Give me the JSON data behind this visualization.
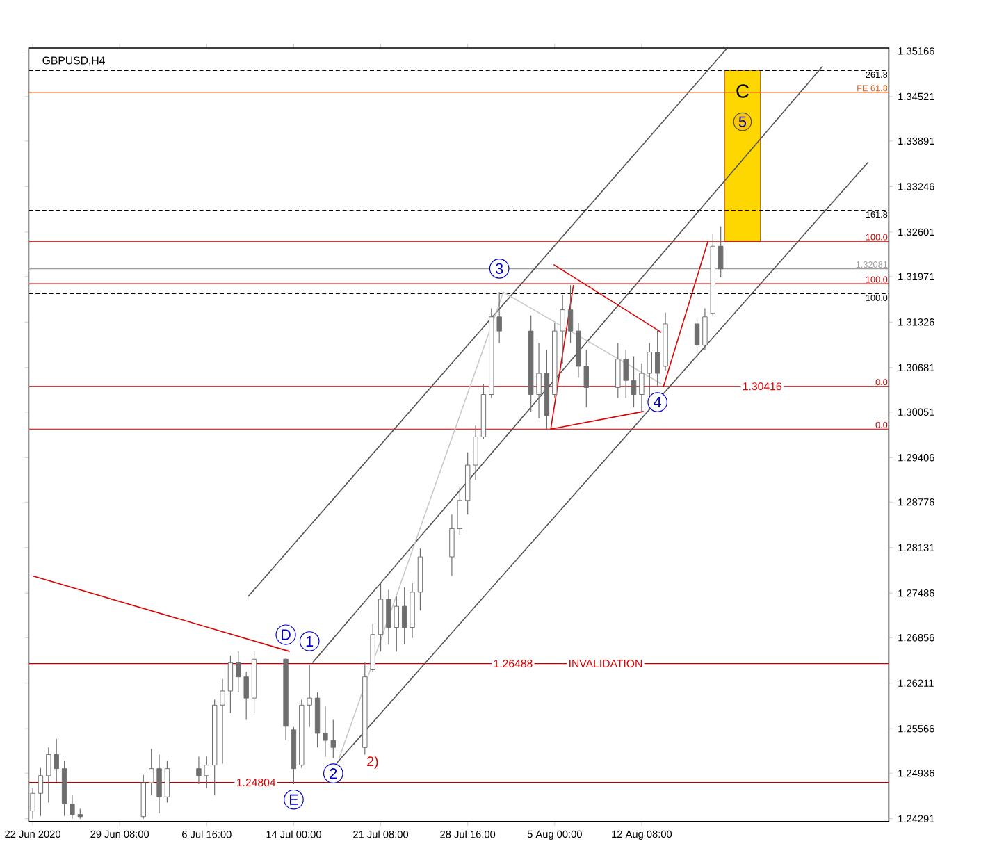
{
  "chart_data": {
    "type": "candlestick",
    "title": "GBPUSD,H4",
    "color": "#6e6e6e",
    "x": [
      "2020-06-22T00:00",
      "2020-06-22T16:00",
      "2020-06-23T08:00",
      "2020-06-24T00:00",
      "2020-06-24T16:00",
      "2020-06-25T08:00",
      "2020-06-26T00:00",
      "2020-07-01T08:00",
      "2020-07-02T00:00",
      "2020-07-02T16:00",
      "2020-07-03T08:00",
      "2020-07-06T00:00",
      "2020-07-06T16:00",
      "2020-07-07T08:00",
      "2020-07-08T00:00",
      "2020-07-08T16:00",
      "2020-07-09T08:00",
      "2020-07-10T00:00",
      "2020-07-10T16:00",
      "2020-07-13T08:00",
      "2020-07-14T00:00",
      "2020-07-14T16:00",
      "2020-07-15T08:00",
      "2020-07-16T00:00",
      "2020-07-16T16:00",
      "2020-07-17T08:00",
      "2020-07-20T00:00",
      "2020-07-20T16:00",
      "2020-07-21T08:00",
      "2020-07-22T00:00",
      "2020-07-22T16:00",
      "2020-07-23T08:00",
      "2020-07-24T00:00",
      "2020-07-24T16:00",
      "2020-07-27T08:00",
      "2020-07-28T00:00",
      "2020-07-28T16:00",
      "2020-07-29T08:00",
      "2020-07-30T00:00",
      "2020-07-30T16:00",
      "2020-07-31T08:00",
      "2020-08-03T00:00",
      "2020-08-03T16:00",
      "2020-08-04T08:00",
      "2020-08-05T00:00",
      "2020-08-05T16:00",
      "2020-08-06T08:00",
      "2020-08-07T00:00",
      "2020-08-07T16:00",
      "2020-08-10T08:00",
      "2020-08-11T00:00",
      "2020-08-11T16:00",
      "2020-08-12T08:00",
      "2020-08-13T00:00",
      "2020-08-13T16:00",
      "2020-08-14T08:00",
      "2020-08-17T00:00",
      "2020-08-17T16:00",
      "2020-08-18T08:00",
      "2020-08-19T00:00"
    ],
    "ohlc": [
      [
        1.244,
        1.2472,
        1.2429,
        1.2465
      ],
      [
        1.2465,
        1.2501,
        1.2433,
        1.249
      ],
      [
        1.249,
        1.253,
        1.2452,
        1.252
      ],
      [
        1.252,
        1.2542,
        1.2481,
        1.25
      ],
      [
        1.25,
        1.2511,
        1.2433,
        1.245
      ],
      [
        1.245,
        1.2462,
        1.2429,
        1.2435
      ],
      [
        1.2435,
        1.2443,
        1.2429,
        1.2432
      ],
      [
        1.2432,
        1.2491,
        1.2429,
        1.248
      ],
      [
        1.248,
        1.2528,
        1.2462,
        1.25
      ],
      [
        1.25,
        1.252,
        1.2437,
        1.246
      ],
      [
        1.246,
        1.2511,
        1.2452,
        1.25
      ],
      [
        1.25,
        1.2517,
        1.2478,
        1.249
      ],
      [
        1.249,
        1.2517,
        1.2472,
        1.2505
      ],
      [
        1.2505,
        1.2598,
        1.2462,
        1.259
      ],
      [
        1.259,
        1.2627,
        1.2507,
        1.261
      ],
      [
        1.261,
        1.266,
        1.2579,
        1.265
      ],
      [
        1.265,
        1.2666,
        1.2608,
        1.263
      ],
      [
        1.263,
        1.2637,
        1.2569,
        1.26
      ],
      [
        1.26,
        1.2666,
        1.2579,
        1.2655
      ],
      [
        1.2655,
        1.2656,
        1.254,
        1.256
      ],
      [
        1.2555,
        1.2559,
        1.2478,
        1.25
      ],
      [
        1.2505,
        1.2598,
        1.2501,
        1.259
      ],
      [
        1.259,
        1.2647,
        1.2559,
        1.26
      ],
      [
        1.26,
        1.2608,
        1.253,
        1.255
      ],
      [
        1.255,
        1.2588,
        1.2517,
        1.254
      ],
      [
        1.254,
        1.2569,
        1.2515,
        1.253
      ],
      [
        1.253,
        1.265,
        1.252,
        1.263
      ],
      [
        1.264,
        1.2705,
        1.2637,
        1.269
      ],
      [
        1.269,
        1.2763,
        1.2666,
        1.274
      ],
      [
        1.274,
        1.2753,
        1.2676,
        1.27
      ],
      [
        1.27,
        1.2744,
        1.2666,
        1.273
      ],
      [
        1.273,
        1.2757,
        1.2676,
        1.27
      ],
      [
        1.27,
        1.2763,
        1.2685,
        1.275
      ],
      [
        1.275,
        1.2812,
        1.2724,
        1.28
      ],
      [
        1.28,
        1.286,
        1.2773,
        1.284
      ],
      [
        1.284,
        1.2899,
        1.2831,
        1.288
      ],
      [
        1.288,
        1.2948,
        1.286,
        1.293
      ],
      [
        1.293,
        1.2986,
        1.2909,
        1.297
      ],
      [
        1.297,
        1.3045,
        1.2967,
        1.303
      ],
      [
        1.303,
        1.3152,
        1.3025,
        1.314
      ],
      [
        1.314,
        1.3175,
        1.3103,
        1.312
      ],
      [
        1.312,
        1.3142,
        1.3006,
        1.303
      ],
      [
        1.303,
        1.3103,
        1.2996,
        1.306
      ],
      [
        1.306,
        1.3093,
        1.2981,
        1.3
      ],
      [
        1.303,
        1.3132,
        1.3025,
        1.312
      ],
      [
        1.312,
        1.3171,
        1.3074,
        1.315
      ],
      [
        1.315,
        1.3185,
        1.3103,
        1.312
      ],
      [
        1.312,
        1.3132,
        1.3054,
        1.307
      ],
      [
        1.307,
        1.3093,
        1.3012,
        1.304
      ],
      [
        1.304,
        1.3103,
        1.3025,
        1.308
      ],
      [
        1.308,
        1.3093,
        1.3025,
        1.305
      ],
      [
        1.305,
        1.3084,
        1.3012,
        1.303
      ],
      [
        1.303,
        1.3074,
        1.3006,
        1.306
      ],
      [
        1.306,
        1.3103,
        1.3025,
        1.309
      ],
      [
        1.309,
        1.3122,
        1.3041,
        1.306
      ],
      [
        1.307,
        1.3146,
        1.3064,
        1.313
      ],
      [
        1.313,
        1.3138,
        1.308,
        1.31
      ],
      [
        1.31,
        1.3152,
        1.3093,
        1.314
      ],
      [
        1.3145,
        1.3258,
        1.3142,
        1.324
      ],
      [
        1.324,
        1.3268,
        1.3196,
        1.3208
      ]
    ],
    "xlim": [
      "2020-06-21T16:00",
      "2020-09-02T04:00"
    ],
    "xticks": [
      {
        "value": "2020-06-22T00:00",
        "label": "22 Jun 2020"
      },
      {
        "value": "2020-06-29T08:00",
        "label": "29 Jun 08:00"
      },
      {
        "value": "2020-07-06T16:00",
        "label": "6 Jul 16:00"
      },
      {
        "value": "2020-07-14T00:00",
        "label": "14 Jul 00:00"
      },
      {
        "value": "2020-07-21T08:00",
        "label": "21 Jul 08:00"
      },
      {
        "value": "2020-07-28T16:00",
        "label": "28 Jul 16:00"
      },
      {
        "value": "2020-08-05T00:00",
        "label": "5 Aug 00:00"
      },
      {
        "value": "2020-08-12T08:00",
        "label": "12 Aug 08:00"
      }
    ],
    "ylim": [
      1.2425,
      1.3521
    ],
    "yticks": [
      1.24291,
      1.24936,
      1.25566,
      1.26211,
      1.26856,
      1.27486,
      1.28131,
      1.28776,
      1.29406,
      1.30051,
      1.30681,
      1.31326,
      1.31971,
      1.32601,
      1.33246,
      1.33891,
      1.34521,
      1.35166
    ],
    "series": [
      {
        "type": "line",
        "color": "#dd0000",
        "x": [
          "2020-06-22T00:00",
          "2020-07-13T16:00"
        ],
        "values": [
          1.2773,
          1.2666
        ]
      },
      {
        "type": "line",
        "color": "#505050",
        "x": [
          "2020-07-10T04:00",
          "2020-08-19T12:00"
        ],
        "values": [
          1.2744,
          1.352
        ]
      },
      {
        "type": "line",
        "color": "#505050",
        "x": [
          "2020-07-15T14:00",
          "2020-08-27T14:00"
        ],
        "values": [
          1.265,
          1.3495
        ]
      },
      {
        "type": "line",
        "color": "#505050",
        "x": [
          "2020-07-17T14:00",
          "2020-08-31T10:00"
        ],
        "values": [
          1.2507,
          1.3359
        ]
      },
      {
        "type": "line",
        "color": "#c8c8c8",
        "x": [
          "2020-07-17T20:00",
          "2020-07-31T16:00",
          "2020-08-14T00:00"
        ],
        "values": [
          1.2515,
          1.3175,
          1.3045
        ]
      },
      {
        "type": "line",
        "color": "#dd0000",
        "x": [
          "2020-08-04T22:00",
          "2020-08-14T00:00"
        ],
        "values": [
          1.3214,
          1.3118
        ]
      },
      {
        "type": "line",
        "color": "#dd0000",
        "x": [
          "2020-08-04T16:00",
          "2020-08-12T12:00"
        ],
        "values": [
          1.2981,
          1.3006
        ]
      },
      {
        "type": "line",
        "color": "#dd0000",
        "x": [
          "2020-08-04T16:00",
          "2020-08-06T14:00"
        ],
        "values": [
          1.2981,
          1.3185
        ]
      },
      {
        "type": "line",
        "color": "#dd0000",
        "x": [
          "2020-08-14T04:00",
          "2020-08-17T22:00"
        ],
        "values": [
          1.3041,
          1.3247
        ]
      }
    ],
    "ref_lines": [
      {
        "axis": "y",
        "value": 1.3489,
        "color": "#000000",
        "line_style": "dashed"
      },
      {
        "axis": "y",
        "value": 1.3458,
        "color": "#e0601a",
        "line_style": "solid"
      },
      {
        "axis": "y",
        "value": 1.3291,
        "color": "#000000",
        "line_style": "dashed"
      },
      {
        "axis": "y",
        "value": 1.3247,
        "color": "#c00000",
        "line_style": "solid"
      },
      {
        "axis": "y",
        "value": 1.32081,
        "label": "1.32081",
        "color": "#a0a0a0",
        "line_style": "solid"
      },
      {
        "axis": "y",
        "value": 1.3187,
        "color": "#c00000",
        "line_style": "solid"
      },
      {
        "axis": "y",
        "value": 1.3173,
        "color": "#000000",
        "line_style": "dashed"
      },
      {
        "axis": "y",
        "value": 1.30416,
        "color": "#c00000",
        "line_style": "solid"
      },
      {
        "axis": "y",
        "value": 1.2981,
        "color": "#c00000",
        "line_style": "solid"
      },
      {
        "axis": "y",
        "value": 1.26488,
        "color": "#c00000",
        "line_style": "solid"
      },
      {
        "axis": "y",
        "value": 1.24804,
        "color": "#c00000",
        "line_style": "solid"
      }
    ],
    "bands": [
      {
        "axis": "y",
        "from": 1.3247,
        "to": 1.3489,
        "color": "#ffd700"
      }
    ],
    "annotations": [
      "C",
      "5",
      {
        "text": "D",
        "x": "2020-07-13T08:00",
        "y": 1.2656
      },
      {
        "text": "1",
        "x": "2020-07-15T08:00",
        "y": 1.2647
      },
      {
        "text": "E",
        "x": "2020-07-14T00:00",
        "y": 1.2478
      },
      {
        "text": "2",
        "x": "2020-07-17T08:00",
        "y": 1.2515
      },
      {
        "text": "2)",
        "x": "2020-07-20T00:00",
        "y": 1.252
      },
      {
        "text": "3",
        "x": "2020-07-31T08:00",
        "y": 1.3175
      },
      {
        "text": "4",
        "x": "2020-08-13T16:00",
        "y": 1.3041
      },
      {
        "text": "261.8",
        "x": "2020-09-02T04:00",
        "y": 1.3489
      },
      {
        "text": "FE 61.8",
        "x": "2020-09-02T04:00",
        "y": 1.3458
      },
      {
        "text": "161.8",
        "x": "2020-09-02T04:00",
        "y": 1.3291
      },
      {
        "text": "100.0",
        "x": "2020-09-02T04:00",
        "y": 1.3247
      },
      {
        "text": "100.0",
        "x": "2020-09-02T04:00",
        "y": 1.3187
      },
      {
        "text": "100.0",
        "x": "2020-09-02T04:00",
        "y": 1.3173
      },
      {
        "text": "0.0",
        "x": "2020-09-02T04:00",
        "y": 1.30416
      },
      {
        "text": "0.0",
        "x": "2020-09-02T04:00",
        "y": 1.2981
      },
      {
        "text": "INVALIDATION",
        "x": "2020-08-06T00:00",
        "y": 1.26488
      },
      {
        "text": "1.26488",
        "x": "2020-07-30T16:00",
        "y": 1.26488
      },
      {
        "text": "1.24804",
        "x": "2020-07-09T00:00",
        "y": 1.24804
      },
      {
        "text": "1.30416",
        "x": "2020-08-20T16:00",
        "y": 1.30416
      }
    ]
  }
}
